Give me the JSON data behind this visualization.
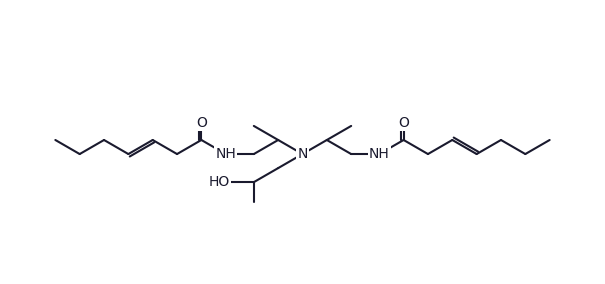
{
  "bg": "#ffffff",
  "lc": "#1a1a2e",
  "lw": 1.5,
  "fs": 10,
  "figsize": [
    6.05,
    2.84
  ],
  "dpi": 100,
  "xlim": [
    -2.5,
    12.5
  ],
  "ylim": [
    -0.5,
    5.5
  ]
}
